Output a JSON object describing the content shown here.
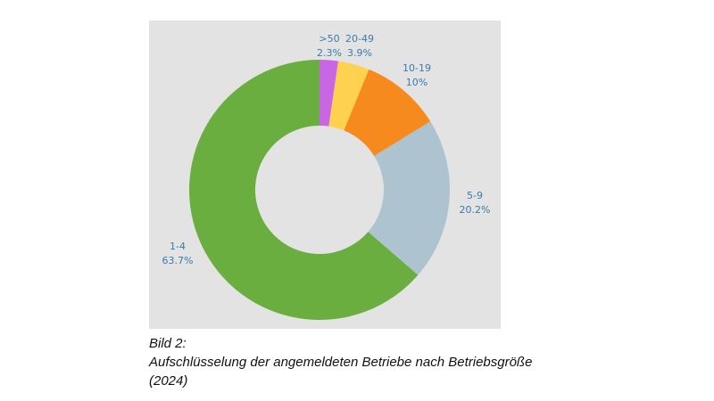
{
  "chart_data": {
    "type": "pie",
    "donut": true,
    "categories": [
      ">50",
      "20-49",
      "10-19",
      "5-9",
      "1-4"
    ],
    "values": [
      2.3,
      3.9,
      10,
      20.2,
      63.7
    ],
    "value_labels": [
      "2.3%",
      "3.9%",
      "10%",
      "20.2%",
      "63.7%"
    ],
    "colors": [
      "#c966e3",
      "#fed150",
      "#f68a1e",
      "#adc4d0",
      "#6aae3f"
    ],
    "start": "top, clockwise",
    "label_color": "#3a7ca8",
    "background": "#e3e3e3"
  },
  "caption": {
    "line1": "Bild 2:",
    "line2": "Aufschlüsselung der angemeldeten Betriebe nach Betriebsgröße",
    "line3": "(2024)"
  }
}
